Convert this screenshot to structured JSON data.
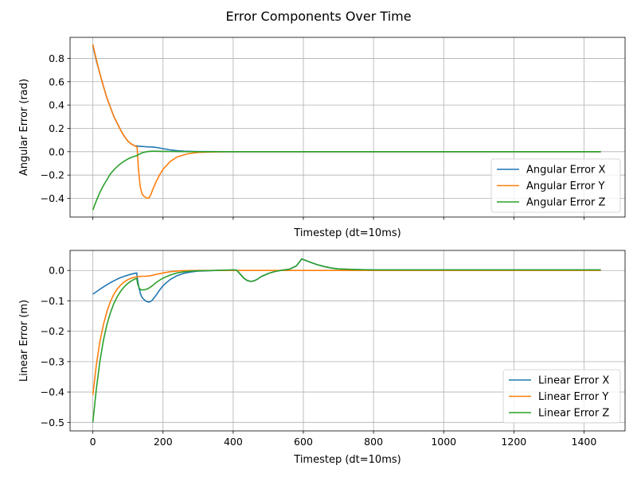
{
  "figure": {
    "title": "Error Components Over Time",
    "colors": {
      "blue": "#1f77b4",
      "orange": "#ff7f0e",
      "green": "#2ca02c",
      "grid": "#b0b0b0"
    }
  },
  "chart_data": [
    {
      "type": "line",
      "title": "",
      "xlabel": "Timestep (dt=10ms)",
      "ylabel": "Angular Error (rad)",
      "xlim": [
        -65,
        1517
      ],
      "ylim": [
        -0.56,
        0.98
      ],
      "xticks": [
        0,
        200,
        400,
        600,
        800,
        1000,
        1200,
        1400
      ],
      "xtick_labels_visible": false,
      "yticks": [
        -0.4,
        -0.2,
        0.0,
        0.2,
        0.4,
        0.6,
        0.8
      ],
      "ytick_labels": [
        "−0.4",
        "−0.2",
        "0.0",
        "0.2",
        "0.4",
        "0.6",
        "0.8"
      ],
      "grid": true,
      "legend_position": "lower-right",
      "series": [
        {
          "name": "Angular Error X",
          "color": "#1f77b4",
          "x": [
            0,
            10,
            20,
            30,
            40,
            50,
            60,
            70,
            80,
            90,
            100,
            110,
            120,
            125,
            130,
            140,
            150,
            160,
            170,
            180,
            200,
            220,
            240,
            260,
            300,
            400,
            500,
            700,
            1000,
            1448
          ],
          "y": [
            0.91,
            0.78,
            0.67,
            0.56,
            0.46,
            0.38,
            0.3,
            0.24,
            0.18,
            0.13,
            0.09,
            0.065,
            0.05,
            0.05,
            0.047,
            0.045,
            0.043,
            0.041,
            0.04,
            0.037,
            0.026,
            0.016,
            0.008,
            0.004,
            0.001,
            0.0,
            0.0,
            0.0,
            0.0,
            0.0
          ]
        },
        {
          "name": "Angular Error Y",
          "color": "#ff7f0e",
          "x": [
            0,
            10,
            20,
            30,
            40,
            50,
            60,
            70,
            80,
            90,
            100,
            110,
            120,
            126,
            130,
            135,
            140,
            145,
            150,
            155,
            160,
            165,
            170,
            180,
            190,
            200,
            220,
            240,
            270,
            300,
            350,
            400,
            500,
            1448
          ],
          "y": [
            0.92,
            0.79,
            0.67,
            0.56,
            0.46,
            0.38,
            0.3,
            0.24,
            0.18,
            0.13,
            0.09,
            0.065,
            0.05,
            0.04,
            -0.15,
            -0.3,
            -0.36,
            -0.38,
            -0.39,
            -0.4,
            -0.395,
            -0.37,
            -0.33,
            -0.26,
            -0.2,
            -0.15,
            -0.085,
            -0.045,
            -0.018,
            -0.006,
            -0.002,
            0.0,
            0.0,
            0.0
          ]
        },
        {
          "name": "Angular Error Z",
          "color": "#2ca02c",
          "x": [
            0,
            10,
            20,
            30,
            40,
            50,
            60,
            70,
            80,
            90,
            100,
            110,
            120,
            125,
            130,
            140,
            150,
            160,
            170,
            180,
            200,
            220,
            250,
            300,
            400,
            500,
            1448
          ],
          "y": [
            -0.5,
            -0.42,
            -0.35,
            -0.29,
            -0.24,
            -0.19,
            -0.155,
            -0.125,
            -0.1,
            -0.08,
            -0.062,
            -0.048,
            -0.038,
            -0.034,
            -0.025,
            -0.01,
            -0.002,
            0.003,
            0.004,
            0.004,
            0.003,
            0.002,
            0.001,
            0.0,
            0.0,
            0.0,
            0.0
          ]
        }
      ]
    },
    {
      "type": "line",
      "title": "",
      "xlabel": "Timestep (dt=10ms)",
      "ylabel": "Linear Error (m)",
      "xlim": [
        -65,
        1517
      ],
      "ylim": [
        -0.528,
        0.066
      ],
      "xticks": [
        0,
        200,
        400,
        600,
        800,
        1000,
        1200,
        1400
      ],
      "xtick_labels": [
        "0",
        "200",
        "400",
        "600",
        "800",
        "1000",
        "1200",
        "1400"
      ],
      "yticks": [
        -0.5,
        -0.4,
        -0.3,
        -0.2,
        -0.1,
        0.0
      ],
      "ytick_labels": [
        "−0.5",
        "−0.4",
        "−0.3",
        "−0.2",
        "−0.1",
        "0.0"
      ],
      "grid": true,
      "legend_position": "lower-right",
      "series": [
        {
          "name": "Linear Error X",
          "color": "#1f77b4",
          "x": [
            0,
            10,
            20,
            30,
            40,
            50,
            60,
            70,
            80,
            90,
            100,
            110,
            120,
            125,
            128,
            132,
            136,
            140,
            145,
            150,
            155,
            160,
            165,
            170,
            180,
            190,
            200,
            220,
            240,
            260,
            280,
            300,
            350,
            400,
            410,
            420,
            430,
            440,
            450,
            460,
            470,
            480,
            500,
            520,
            540,
            560,
            580,
            590,
            595,
            600,
            620,
            640,
            660,
            680,
            700,
            750,
            800,
            900,
            1000,
            1200,
            1448
          ],
          "y": [
            -0.078,
            -0.07,
            -0.062,
            -0.054,
            -0.047,
            -0.04,
            -0.034,
            -0.028,
            -0.023,
            -0.019,
            -0.015,
            -0.012,
            -0.009,
            -0.008,
            -0.035,
            -0.06,
            -0.078,
            -0.088,
            -0.095,
            -0.1,
            -0.103,
            -0.104,
            -0.102,
            -0.097,
            -0.082,
            -0.065,
            -0.05,
            -0.03,
            -0.017,
            -0.009,
            -0.005,
            -0.002,
            0.0,
            0.002,
            0.001,
            -0.012,
            -0.025,
            -0.033,
            -0.036,
            -0.034,
            -0.028,
            -0.02,
            -0.01,
            -0.003,
            0.001,
            0.004,
            0.015,
            0.03,
            0.038,
            0.036,
            0.027,
            0.019,
            0.013,
            0.008,
            0.005,
            0.003,
            0.002,
            0.002,
            0.002,
            0.002,
            0.002
          ]
        },
        {
          "name": "Linear Error Y",
          "color": "#ff7f0e",
          "x": [
            0,
            10,
            20,
            30,
            40,
            50,
            60,
            70,
            80,
            90,
            100,
            110,
            120,
            130,
            140,
            150,
            160,
            170,
            180,
            200,
            220,
            250,
            300,
            400,
            500,
            700,
            1000,
            1448
          ],
          "y": [
            -0.41,
            -0.31,
            -0.235,
            -0.178,
            -0.135,
            -0.102,
            -0.078,
            -0.06,
            -0.047,
            -0.037,
            -0.03,
            -0.025,
            -0.022,
            -0.02,
            -0.019,
            -0.019,
            -0.018,
            -0.016,
            -0.013,
            -0.008,
            -0.004,
            -0.001,
            0.0,
            0.0,
            0.0,
            0.0,
            0.0,
            0.0
          ]
        },
        {
          "name": "Linear Error Z",
          "color": "#2ca02c",
          "x": [
            0,
            10,
            20,
            30,
            40,
            50,
            60,
            70,
            80,
            90,
            100,
            110,
            120,
            125,
            128,
            132,
            136,
            140,
            150,
            160,
            170,
            180,
            190,
            200,
            220,
            240,
            260,
            280,
            300,
            350,
            400,
            410,
            420,
            430,
            440,
            450,
            460,
            470,
            480,
            500,
            520,
            540,
            560,
            580,
            590,
            595,
            600,
            620,
            640,
            660,
            680,
            700,
            750,
            800,
            900,
            1000,
            1200,
            1448
          ],
          "y": [
            -0.5,
            -0.39,
            -0.3,
            -0.23,
            -0.178,
            -0.139,
            -0.108,
            -0.085,
            -0.067,
            -0.053,
            -0.042,
            -0.034,
            -0.028,
            -0.026,
            -0.045,
            -0.058,
            -0.063,
            -0.064,
            -0.063,
            -0.058,
            -0.05,
            -0.04,
            -0.032,
            -0.025,
            -0.015,
            -0.008,
            -0.004,
            -0.002,
            -0.001,
            0.0,
            0.002,
            0.001,
            -0.012,
            -0.025,
            -0.033,
            -0.036,
            -0.034,
            -0.028,
            -0.02,
            -0.01,
            -0.003,
            0.001,
            0.004,
            0.015,
            0.03,
            0.038,
            0.036,
            0.027,
            0.019,
            0.013,
            0.008,
            0.005,
            0.003,
            0.002,
            0.002,
            0.002,
            0.002,
            0.002
          ]
        }
      ]
    }
  ]
}
